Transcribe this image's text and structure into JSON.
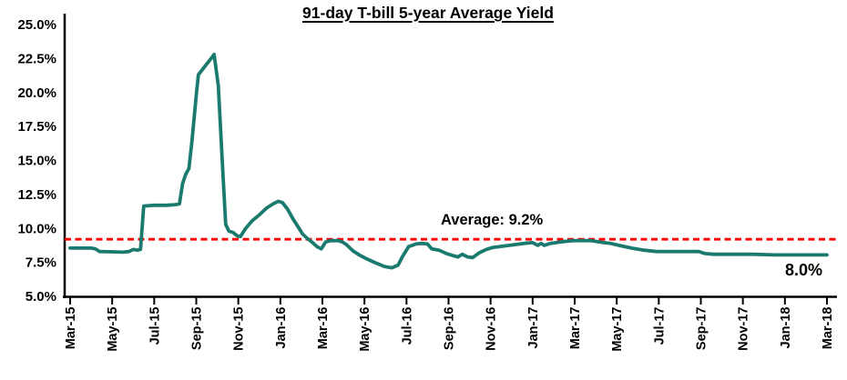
{
  "title": "91-day T-bill 5-year Average Yield",
  "colors": {
    "background": "#FFFFFF",
    "axis": "#000000",
    "text": "#000000",
    "series_line": "#1A7A6E",
    "average_line": "#FF0000"
  },
  "chart_data": {
    "type": "line",
    "title": "91-day T-bill 5-year Average Yield",
    "xlabel": "",
    "ylabel": "",
    "grid": false,
    "legend": "none",
    "y_axis": {
      "min": 5,
      "max": 25,
      "step": 2.5,
      "unit": "%",
      "tick_labels": [
        "25.0%",
        "22.5%",
        "20.0%",
        "17.5%",
        "15.0%",
        "12.5%",
        "10.0%",
        "7.5%",
        "5.0%"
      ]
    },
    "x_axis": {
      "start": "Mar-15",
      "end": "Mar-18",
      "months_span": 36,
      "tick_interval_months": 2,
      "tick_labels": [
        "Mar-15",
        "May-15",
        "Jul-15",
        "Sep-15",
        "Nov-15",
        "Jan-16",
        "Mar-16",
        "May-16",
        "Jul-16",
        "Sep-16",
        "Nov-16",
        "Jan-17",
        "Mar-17",
        "May-17",
        "Jul-17",
        "Sep-17",
        "Nov-17",
        "Jan-18",
        "Mar-18"
      ]
    },
    "average_line": {
      "value": 9.2,
      "label": "Average: 9.2%",
      "style": "dashed",
      "color": "#FF0000"
    },
    "end_label": {
      "text": "8.0%",
      "value": 8.0
    },
    "series": [
      {
        "name": "91-day T-bill 5-year average yield",
        "color": "#1A7A6E",
        "points_format": [
          "months_after_Mar-15",
          "percent"
        ],
        "points": [
          [
            0,
            8.55
          ],
          [
            0.5,
            8.55
          ],
          [
            1.0,
            8.55
          ],
          [
            1.2,
            8.5
          ],
          [
            1.4,
            8.3
          ],
          [
            2.0,
            8.28
          ],
          [
            2.5,
            8.25
          ],
          [
            2.8,
            8.3
          ],
          [
            3.0,
            8.45
          ],
          [
            3.2,
            8.4
          ],
          [
            3.35,
            8.45
          ],
          [
            3.5,
            11.65
          ],
          [
            4.0,
            11.7
          ],
          [
            4.6,
            11.7
          ],
          [
            5.0,
            11.75
          ],
          [
            5.2,
            11.8
          ],
          [
            5.35,
            13.3
          ],
          [
            5.5,
            14.0
          ],
          [
            5.65,
            14.4
          ],
          [
            5.8,
            16.5
          ],
          [
            6.0,
            19.8
          ],
          [
            6.1,
            21.3
          ],
          [
            6.4,
            21.9
          ],
          [
            6.7,
            22.5
          ],
          [
            6.85,
            22.8
          ],
          [
            7.05,
            20.5
          ],
          [
            7.25,
            14.5
          ],
          [
            7.4,
            10.3
          ],
          [
            7.55,
            9.8
          ],
          [
            7.75,
            9.7
          ],
          [
            7.95,
            9.45
          ],
          [
            8.1,
            9.4
          ],
          [
            8.35,
            10.0
          ],
          [
            8.65,
            10.55
          ],
          [
            9.0,
            11.0
          ],
          [
            9.35,
            11.5
          ],
          [
            9.65,
            11.8
          ],
          [
            9.9,
            12.0
          ],
          [
            10.1,
            11.9
          ],
          [
            10.35,
            11.4
          ],
          [
            10.6,
            10.7
          ],
          [
            10.85,
            10.1
          ],
          [
            11.05,
            9.6
          ],
          [
            11.25,
            9.3
          ],
          [
            11.5,
            9.0
          ],
          [
            11.75,
            8.65
          ],
          [
            11.95,
            8.5
          ],
          [
            12.15,
            9.0
          ],
          [
            12.4,
            9.1
          ],
          [
            12.75,
            9.1
          ],
          [
            12.95,
            9.0
          ],
          [
            13.15,
            8.8
          ],
          [
            13.45,
            8.35
          ],
          [
            13.75,
            8.05
          ],
          [
            14.05,
            7.8
          ],
          [
            14.55,
            7.45
          ],
          [
            14.95,
            7.2
          ],
          [
            15.3,
            7.1
          ],
          [
            15.6,
            7.3
          ],
          [
            15.8,
            7.9
          ],
          [
            16.1,
            8.65
          ],
          [
            16.45,
            8.85
          ],
          [
            16.75,
            8.9
          ],
          [
            17.0,
            8.85
          ],
          [
            17.2,
            8.5
          ],
          [
            17.55,
            8.4
          ],
          [
            17.9,
            8.15
          ],
          [
            18.2,
            8.0
          ],
          [
            18.45,
            7.9
          ],
          [
            18.65,
            8.1
          ],
          [
            18.9,
            7.9
          ],
          [
            19.15,
            7.85
          ],
          [
            19.45,
            8.2
          ],
          [
            19.8,
            8.45
          ],
          [
            20.1,
            8.6
          ],
          [
            20.6,
            8.7
          ],
          [
            21.1,
            8.8
          ],
          [
            21.6,
            8.9
          ],
          [
            22.0,
            8.95
          ],
          [
            22.25,
            8.75
          ],
          [
            22.4,
            8.9
          ],
          [
            22.55,
            8.75
          ],
          [
            22.85,
            8.9
          ],
          [
            23.3,
            9.0
          ],
          [
            23.9,
            9.1
          ],
          [
            24.8,
            9.1
          ],
          [
            25.2,
            9.0
          ],
          [
            25.7,
            8.9
          ],
          [
            26.1,
            8.75
          ],
          [
            26.7,
            8.55
          ],
          [
            27.3,
            8.4
          ],
          [
            27.9,
            8.3
          ],
          [
            28.5,
            8.3
          ],
          [
            29.3,
            8.3
          ],
          [
            29.9,
            8.3
          ],
          [
            30.2,
            8.15
          ],
          [
            30.6,
            8.1
          ],
          [
            31.5,
            8.1
          ],
          [
            32.5,
            8.1
          ],
          [
            33.5,
            8.05
          ],
          [
            34.5,
            8.05
          ],
          [
            35.5,
            8.05
          ],
          [
            36,
            8.05
          ]
        ]
      }
    ]
  }
}
